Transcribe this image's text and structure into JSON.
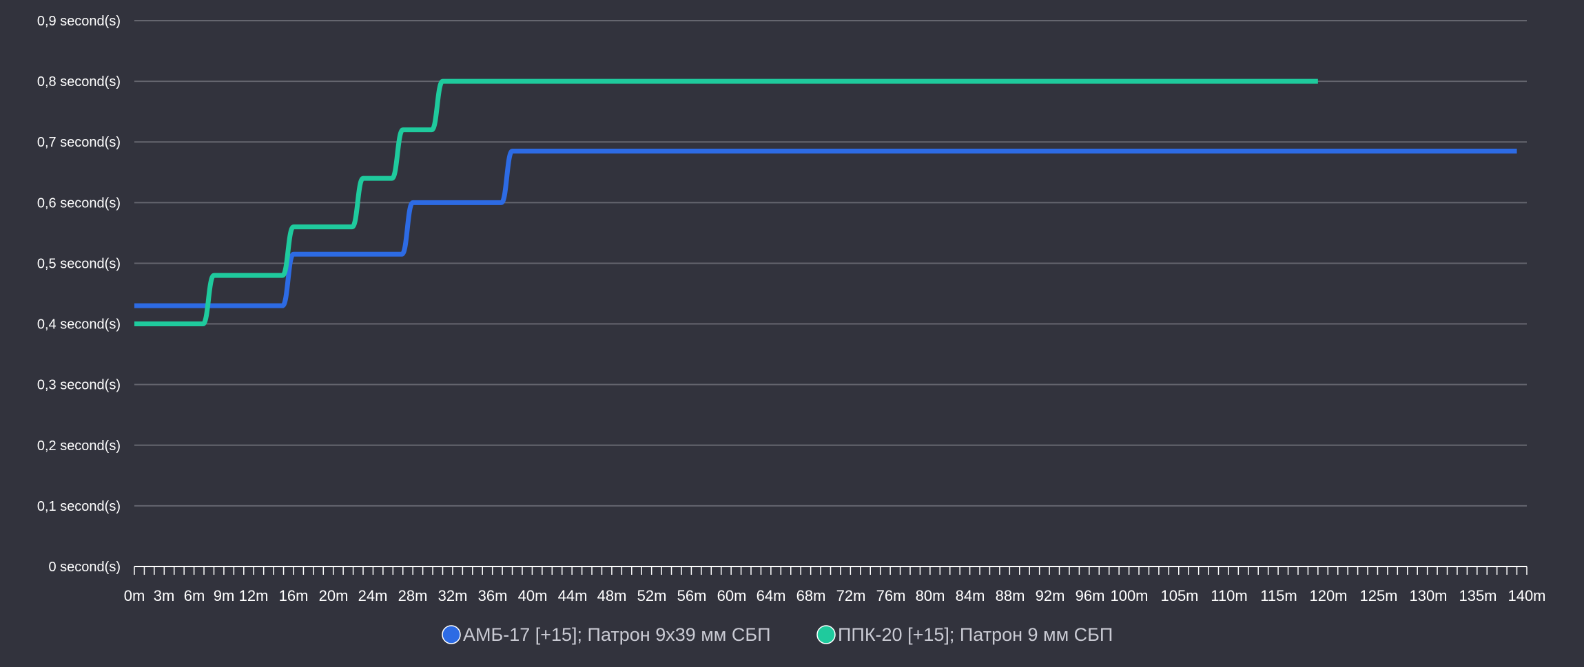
{
  "chart_data": {
    "type": "line",
    "title": "",
    "xlabel": "",
    "ylabel": "",
    "ylim": [
      0,
      0.9
    ],
    "xlim": [
      0,
      140
    ],
    "grid": true,
    "legend_position": "bottom-center",
    "y_ticks": [
      "0 second(s)",
      "0,1 second(s)",
      "0,2 second(s)",
      "0,3 second(s)",
      "0,4 second(s)",
      "0,5 second(s)",
      "0,6 second(s)",
      "0,7 second(s)",
      "0,8 second(s)",
      "0,9 second(s)"
    ],
    "x_ticks": [
      "0m",
      "3m",
      "6m",
      "9m",
      "12m",
      "16m",
      "20m",
      "24m",
      "28m",
      "32m",
      "36m",
      "40m",
      "44m",
      "48m",
      "52m",
      "56m",
      "60m",
      "64m",
      "68m",
      "72m",
      "76m",
      "80m",
      "84m",
      "88m",
      "92m",
      "96m",
      "100m",
      "105m",
      "110m",
      "115m",
      "120m",
      "125m",
      "130m",
      "135m",
      "140m"
    ],
    "series": [
      {
        "name": "АМБ-17 [+15]; Патрон 9х39 мм СБП",
        "color": "#2d6be4",
        "x": [
          0,
          16,
          28,
          38,
          139
        ],
        "y": [
          0.43,
          0.515,
          0.6,
          0.685,
          0.685
        ],
        "step": "post"
      },
      {
        "name": "ППК-20 [+15]; Патрон 9 мм СБП",
        "color": "#1fca9d",
        "x": [
          0,
          8,
          16,
          23,
          27,
          31,
          119
        ],
        "y": [
          0.4,
          0.48,
          0.56,
          0.64,
          0.72,
          0.8,
          0.8
        ],
        "step": "post"
      }
    ]
  },
  "colors": {
    "background": "#32333d",
    "grid": "#65666f",
    "axis": "#ffffff"
  }
}
